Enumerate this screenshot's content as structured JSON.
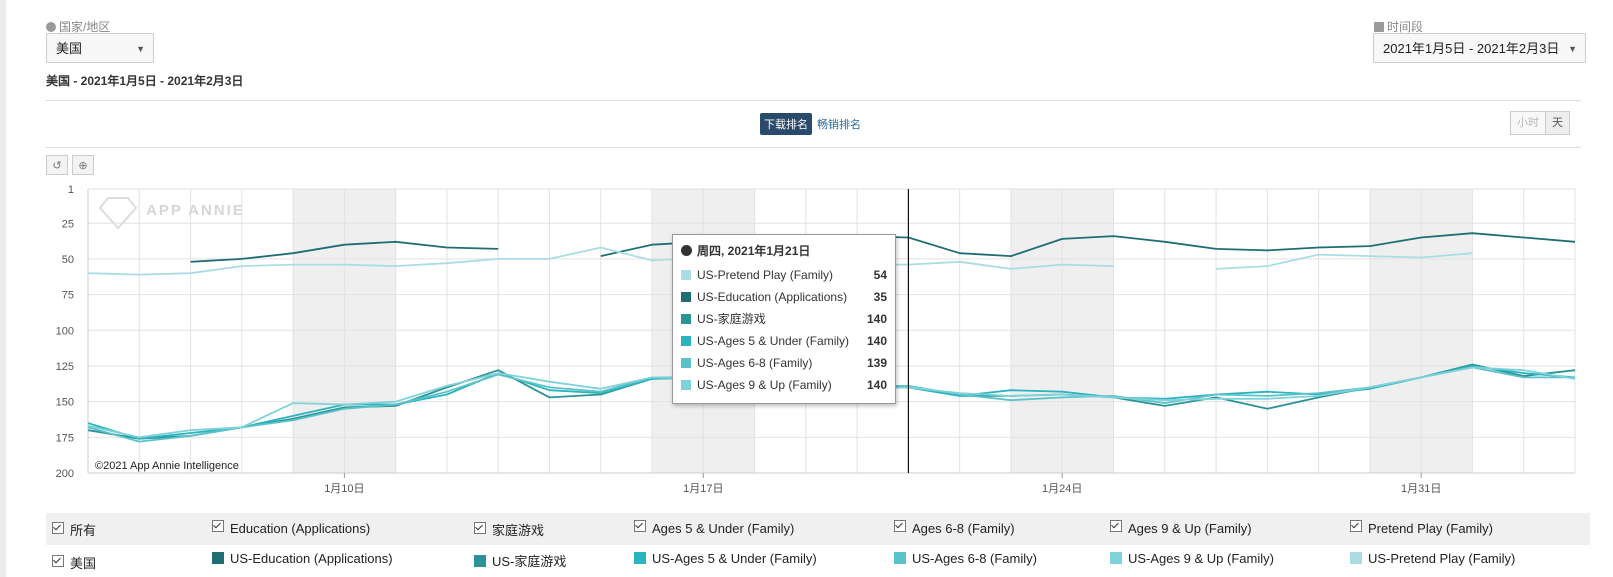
{
  "filters": {
    "country_label": "国家/地区",
    "country_value": "美国",
    "period_label": "时间段",
    "period_value": "2021年1月5日 - 2021年2月3日"
  },
  "subtitle": "美国 - 2021年1月5日 - 2021年2月3日",
  "tabs": [
    "下载排名",
    "畅销排名"
  ],
  "granularity": [
    "小时",
    "天"
  ],
  "watermark": "APP ANNIE",
  "copyright": "©2021 App Annie Intelligence",
  "tooltip": {
    "title": "周四, 2021年1月21日",
    "rows": [
      {
        "name": "US-Pretend Play (Family)",
        "value": "54",
        "color": "#a9dde3"
      },
      {
        "name": "US-Education (Applications)",
        "value": "35",
        "color": "#1f6e74"
      },
      {
        "name": "US-家庭游戏",
        "value": "140",
        "color": "#2a9496"
      },
      {
        "name": "US-Ages 5 & Under (Family)",
        "value": "140",
        "color": "#2ab4be"
      },
      {
        "name": "US-Ages 6-8 (Family)",
        "value": "139",
        "color": "#5cc2c9"
      },
      {
        "name": "US-Ages 9 & Up (Family)",
        "value": "140",
        "color": "#7fd2d9"
      }
    ]
  },
  "legend": {
    "filters": [
      "所有",
      "Education (Applications)",
      "家庭游戏",
      "Ages 5 & Under (Family)",
      "Ages 6-8 (Family)",
      "Ages 9 & Up (Family)",
      "Pretend Play (Family)"
    ],
    "country": "美国",
    "series": [
      {
        "name": "US-Education (Applications)",
        "color": "#1f6e74"
      },
      {
        "name": "US-家庭游戏",
        "color": "#2a9496"
      },
      {
        "name": "US-Ages 5 & Under (Family)",
        "color": "#2ab4be"
      },
      {
        "name": "US-Ages 6-8 (Family)",
        "color": "#5cc2c9"
      },
      {
        "name": "US-Ages 9 & Up (Family)",
        "color": "#7fd2d9"
      },
      {
        "name": "US-Pretend Play (Family)",
        "color": "#a9dde3"
      }
    ]
  },
  "chart_data": {
    "type": "line",
    "title": "",
    "xlabel": "",
    "ylabel": "",
    "y_reversed": true,
    "ylim": [
      1,
      200
    ],
    "yticks": [
      1,
      25,
      50,
      75,
      100,
      125,
      150,
      175,
      200
    ],
    "x": [
      "2021-01-05",
      "2021-01-06",
      "2021-01-07",
      "2021-01-08",
      "2021-01-09",
      "2021-01-10",
      "2021-01-11",
      "2021-01-12",
      "2021-01-13",
      "2021-01-14",
      "2021-01-15",
      "2021-01-16",
      "2021-01-17",
      "2021-01-18",
      "2021-01-19",
      "2021-01-20",
      "2021-01-21",
      "2021-01-22",
      "2021-01-23",
      "2021-01-24",
      "2021-01-25",
      "2021-01-26",
      "2021-01-27",
      "2021-01-28",
      "2021-01-29",
      "2021-01-30",
      "2021-01-31",
      "2021-02-01",
      "2021-02-02",
      "2021-02-03"
    ],
    "x_tick_labels": [
      {
        "date": "2021-01-10",
        "label": "1月10日"
      },
      {
        "date": "2021-01-17",
        "label": "1月17日"
      },
      {
        "date": "2021-01-24",
        "label": "1月24日"
      },
      {
        "date": "2021-01-31",
        "label": "1月31日"
      }
    ],
    "grid": true,
    "hover_date": "2021-01-21",
    "series": [
      {
        "name": "US-Education (Applications)",
        "color": "#1f6e74",
        "values": [
          44,
          null,
          52,
          50,
          46,
          40,
          38,
          42,
          43,
          null,
          48,
          40,
          38,
          40,
          36,
          34,
          35,
          46,
          48,
          36,
          34,
          38,
          43,
          44,
          42,
          41,
          35,
          32,
          35,
          38
        ]
      },
      {
        "name": "US-家庭游戏",
        "color": "#2a9496",
        "values": [
          170,
          176,
          174,
          168,
          162,
          154,
          153,
          140,
          128,
          147,
          145,
          134,
          133,
          138,
          140,
          140,
          140,
          146,
          146,
          145,
          147,
          153,
          147,
          155,
          147,
          140,
          133,
          124,
          132,
          128
        ]
      },
      {
        "name": "US-Ages 5 & Under (Family)",
        "color": "#2ab4be",
        "values": [
          165,
          176,
          172,
          168,
          160,
          152,
          152,
          145,
          130,
          142,
          144,
          134,
          133,
          138,
          140,
          140,
          140,
          146,
          142,
          143,
          147,
          148,
          145,
          143,
          145,
          141,
          133,
          125,
          130,
          133
        ]
      },
      {
        "name": "US-Ages 6-8 (Family)",
        "color": "#5cc2c9",
        "values": [
          168,
          178,
          174,
          168,
          163,
          155,
          152,
          143,
          131,
          140,
          143,
          133,
          133,
          137,
          139,
          139,
          139,
          145,
          149,
          147,
          146,
          151,
          145,
          146,
          144,
          140,
          133,
          126,
          133,
          133
        ]
      },
      {
        "name": "US-Ages 9 & Up (Family)",
        "color": "#7fd2d9",
        "values": [
          167,
          175,
          170,
          168,
          151,
          152,
          150,
          139,
          130,
          136,
          141,
          133,
          134,
          138,
          140,
          141,
          140,
          144,
          146,
          145,
          147,
          149,
          148,
          148,
          146,
          140,
          133,
          126,
          128,
          134
        ]
      },
      {
        "name": "US-Pretend Play (Family)",
        "color": "#a9dde3",
        "values": [
          60,
          61,
          60,
          55,
          54,
          54,
          55,
          53,
          50,
          50,
          42,
          51,
          49,
          52,
          54,
          54,
          54,
          52,
          57,
          54,
          55,
          null,
          57,
          55,
          47,
          48,
          49,
          46,
          null,
          null
        ]
      }
    ]
  }
}
